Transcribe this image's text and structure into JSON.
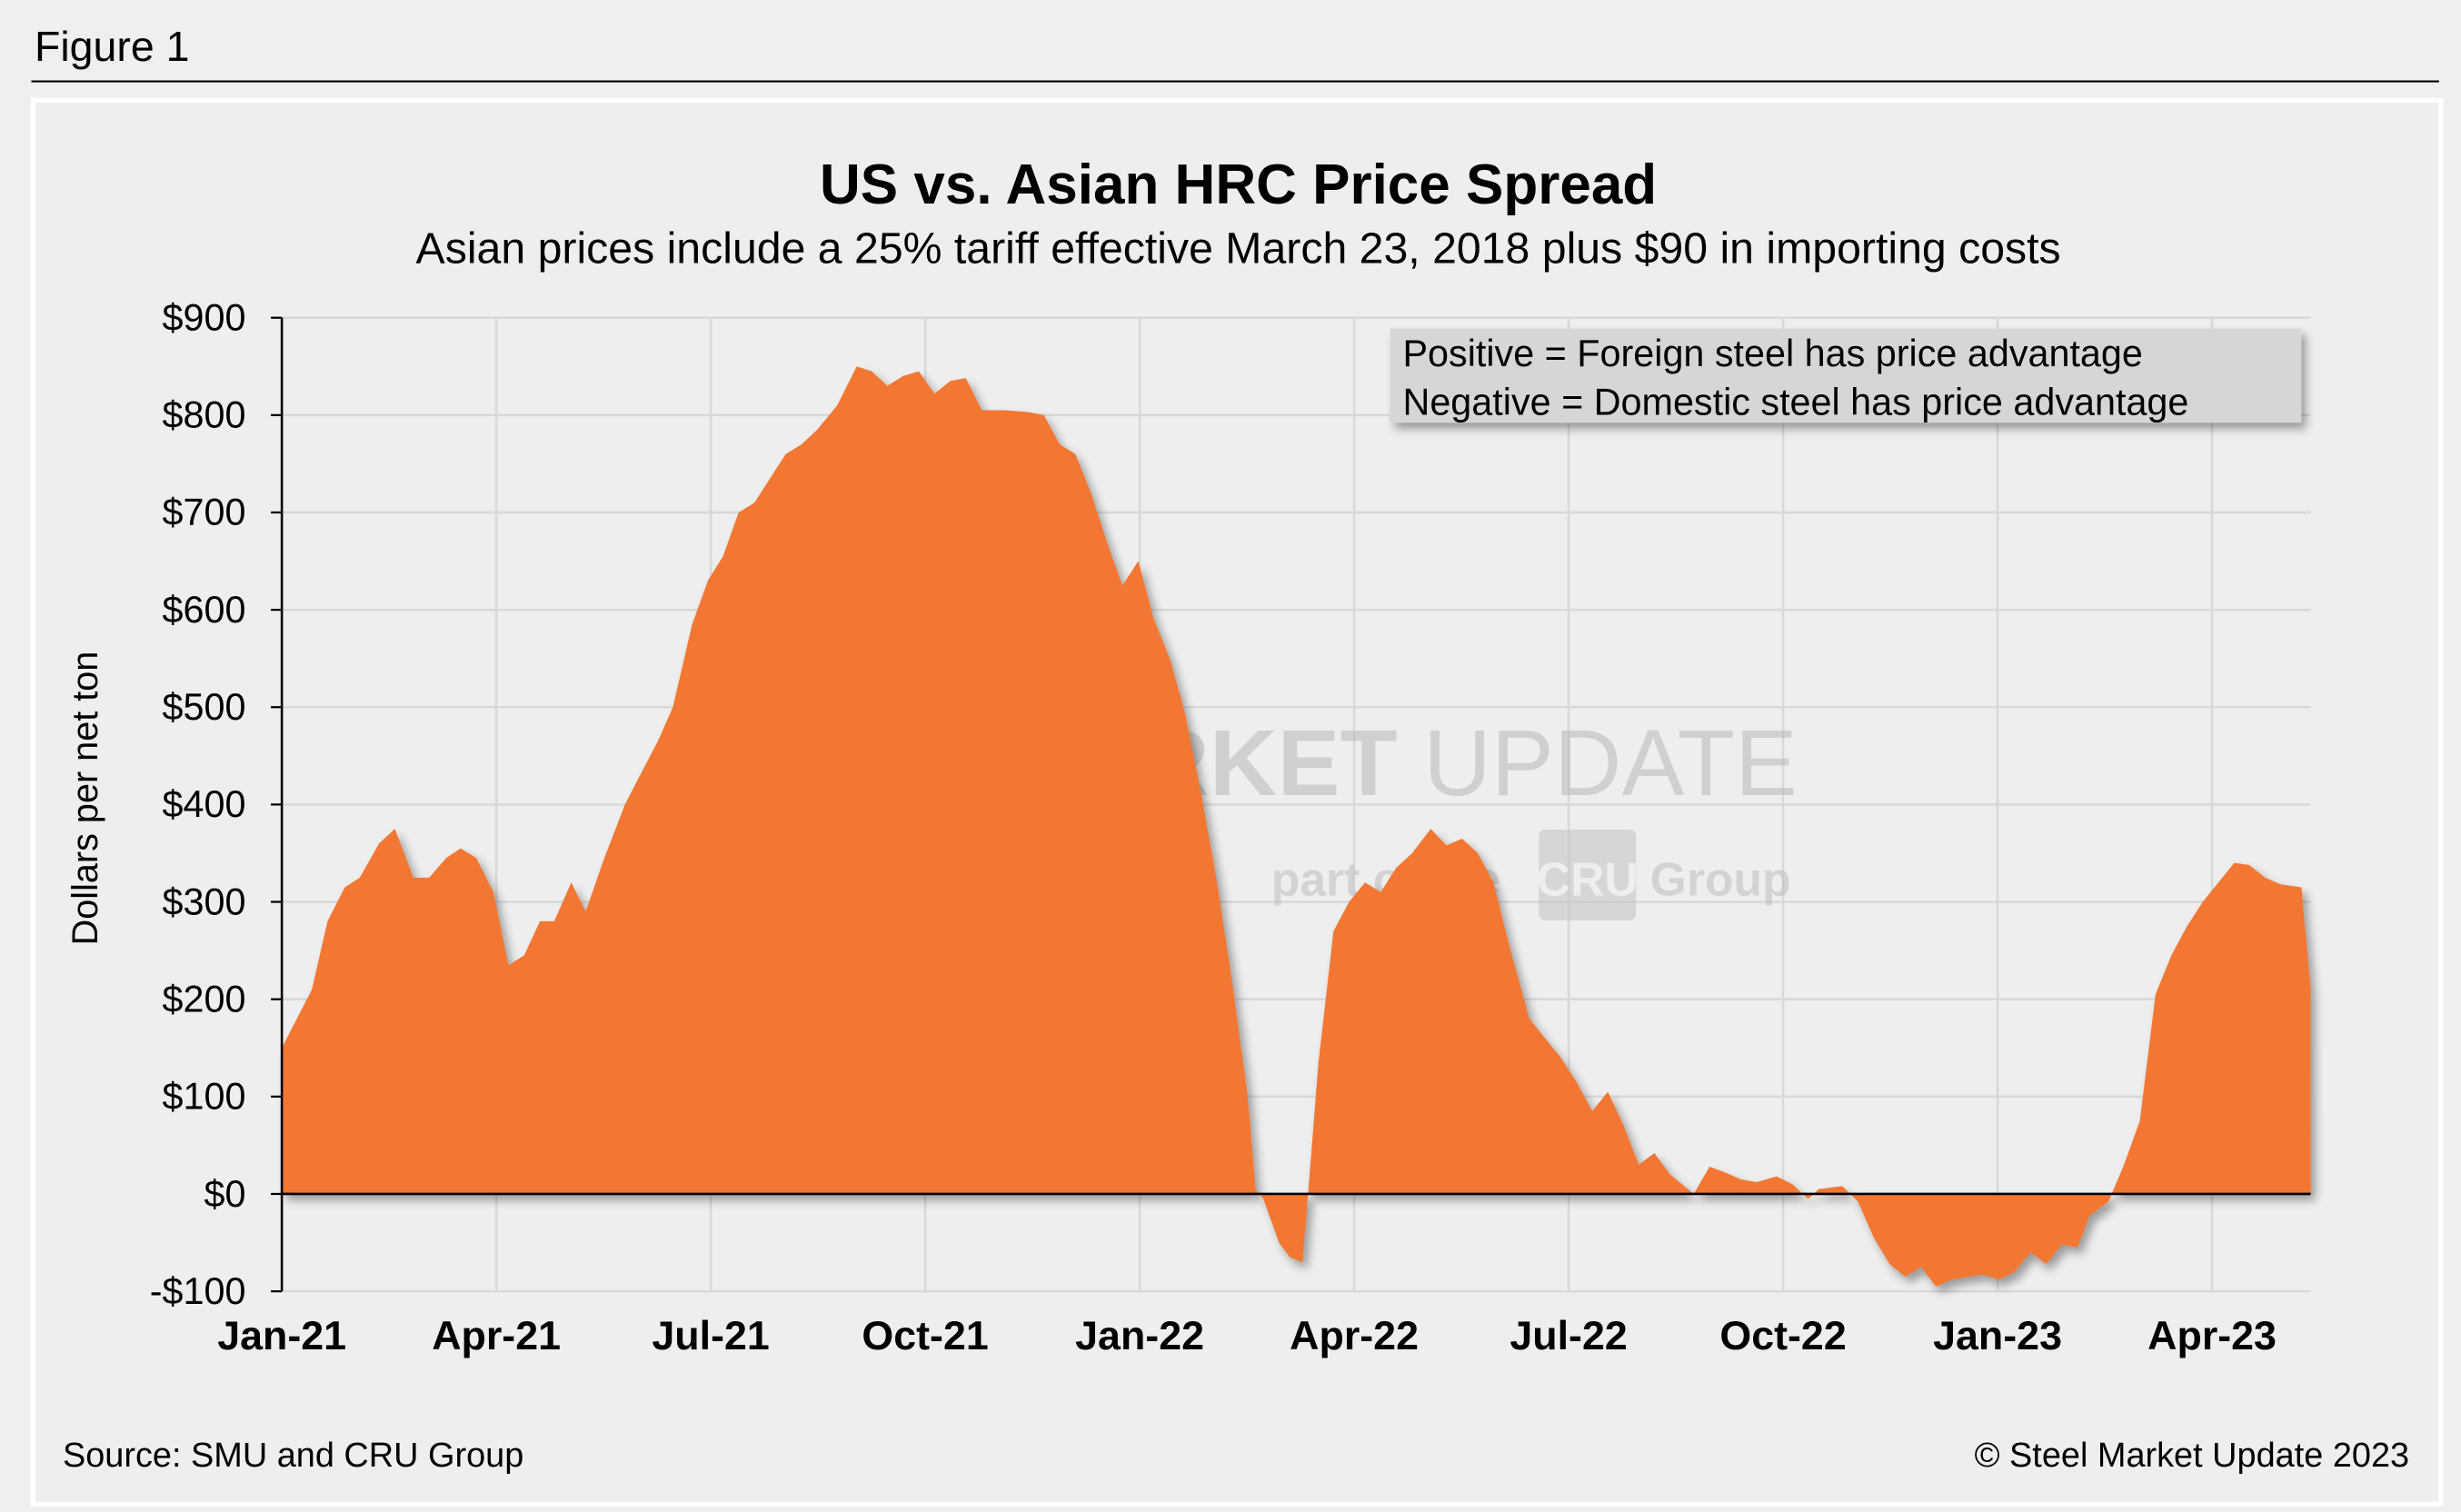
{
  "figure_label": "Figure 1",
  "source": "Source: SMU and CRU Group",
  "copyright": "© Steel Market Update 2023",
  "watermark": {
    "line1_bold": "STEEL MARKET",
    "line1_light": "UPDATE",
    "line2a": "part of the",
    "line2_logo": "CRU",
    "line2b": "Group"
  },
  "legend_note": [
    "Positive = Foreign steel has price advantage",
    "Negative = Domestic steel has price advantage"
  ],
  "colors": {
    "fill": "#f27730",
    "grid": "#d9d9d9",
    "background": "#efefef",
    "legend_bg": "#d6d6d6"
  },
  "chart_data": {
    "type": "area",
    "title": "US vs. Asian HRC Price Spread",
    "subtitle": "Asian prices include a 25% tariff effective March 23, 2018 plus $90 in importing costs",
    "xlabel": "",
    "ylabel": "Dollars per net ton",
    "ylim": [
      -100,
      900
    ],
    "yticks": [
      -100,
      0,
      100,
      200,
      300,
      400,
      500,
      600,
      700,
      800,
      900
    ],
    "ytick_labels": [
      "-$100",
      "$0",
      "$100",
      "$200",
      "$300",
      "$400",
      "$500",
      "$600",
      "$700",
      "$800",
      "$900"
    ],
    "x_units": "months since Jan 2021",
    "xlim": [
      0,
      28.38
    ],
    "xticks": [
      0,
      3,
      6,
      9,
      12,
      15,
      18,
      21,
      24,
      27
    ],
    "xtick_labels": [
      "Jan-21",
      "Apr-21",
      "Jul-21",
      "Oct-21",
      "Jan-22",
      "Apr-22",
      "Jul-22",
      "Oct-22",
      "Jan-23",
      "Apr-23"
    ],
    "grid": true,
    "series": [
      {
        "name": "US vs. Asian HRC spread",
        "points": [
          [
            0,
            150
          ],
          [
            0.42,
            210
          ],
          [
            0.64,
            280
          ],
          [
            0.88,
            315
          ],
          [
            1.09,
            325
          ],
          [
            1.36,
            360
          ],
          [
            1.58,
            375
          ],
          [
            1.84,
            325
          ],
          [
            2.06,
            325
          ],
          [
            2.3,
            345
          ],
          [
            2.5,
            355
          ],
          [
            2.72,
            345
          ],
          [
            2.96,
            310
          ],
          [
            3.17,
            235
          ],
          [
            3.39,
            245
          ],
          [
            3.61,
            280
          ],
          [
            3.81,
            280
          ],
          [
            4.05,
            320
          ],
          [
            4.25,
            290
          ],
          [
            4.51,
            345
          ],
          [
            4.8,
            400
          ],
          [
            5.01,
            430
          ],
          [
            5.26,
            465
          ],
          [
            5.47,
            500
          ],
          [
            5.74,
            585
          ],
          [
            5.96,
            630
          ],
          [
            6.17,
            655
          ],
          [
            6.39,
            700
          ],
          [
            6.61,
            710
          ],
          [
            6.83,
            735
          ],
          [
            7.05,
            760
          ],
          [
            7.27,
            770
          ],
          [
            7.49,
            785
          ],
          [
            7.77,
            810
          ],
          [
            8.04,
            850
          ],
          [
            8.25,
            845
          ],
          [
            8.47,
            830
          ],
          [
            8.69,
            840
          ],
          [
            8.91,
            845
          ],
          [
            9.13,
            822
          ],
          [
            9.35,
            835
          ],
          [
            9.57,
            838
          ],
          [
            9.79,
            805
          ],
          [
            10.12,
            805
          ],
          [
            10.44,
            803
          ],
          [
            10.66,
            800
          ],
          [
            10.88,
            770
          ],
          [
            11.1,
            760
          ],
          [
            11.32,
            720
          ],
          [
            11.54,
            670
          ],
          [
            11.76,
            625
          ],
          [
            11.98,
            650
          ],
          [
            12.2,
            590
          ],
          [
            12.42,
            550
          ],
          [
            12.63,
            495
          ],
          [
            12.85,
            415
          ],
          [
            13.07,
            325
          ],
          [
            13.29,
            220
          ],
          [
            13.51,
            100
          ],
          [
            13.62,
            5
          ],
          [
            13.73,
            -5
          ],
          [
            13.95,
            -50
          ],
          [
            14.1,
            -65
          ],
          [
            14.28,
            -70
          ],
          [
            14.5,
            135
          ],
          [
            14.71,
            270
          ],
          [
            14.93,
            300
          ],
          [
            15.15,
            320
          ],
          [
            15.37,
            310
          ],
          [
            15.59,
            335
          ],
          [
            15.81,
            350
          ],
          [
            16.07,
            375
          ],
          [
            16.29,
            358
          ],
          [
            16.51,
            365
          ],
          [
            16.73,
            350
          ],
          [
            16.95,
            320
          ],
          [
            17.17,
            255
          ],
          [
            17.45,
            180
          ],
          [
            17.67,
            160
          ],
          [
            17.89,
            140
          ],
          [
            18.11,
            115
          ],
          [
            18.33,
            85
          ],
          [
            18.55,
            105
          ],
          [
            18.77,
            70
          ],
          [
            18.98,
            30
          ],
          [
            19.2,
            42
          ],
          [
            19.42,
            20
          ],
          [
            19.75,
            0
          ],
          [
            19.97,
            28
          ],
          [
            20.19,
            22
          ],
          [
            20.41,
            15
          ],
          [
            20.63,
            12
          ],
          [
            20.91,
            18
          ],
          [
            21.13,
            10
          ],
          [
            21.35,
            -5
          ],
          [
            21.5,
            5
          ],
          [
            21.83,
            8
          ],
          [
            22.05,
            -8
          ],
          [
            22.27,
            -45
          ],
          [
            22.49,
            -72
          ],
          [
            22.71,
            -85
          ],
          [
            22.93,
            -75
          ],
          [
            23.14,
            -95
          ],
          [
            23.36,
            -88
          ],
          [
            23.58,
            -85
          ],
          [
            23.8,
            -83
          ],
          [
            24.02,
            -88
          ],
          [
            24.24,
            -80
          ],
          [
            24.46,
            -60
          ],
          [
            24.68,
            -72
          ],
          [
            24.9,
            -52
          ],
          [
            25.12,
            -55
          ],
          [
            25.29,
            -22
          ],
          [
            25.55,
            -8
          ],
          [
            25.77,
            30
          ],
          [
            25.99,
            75
          ],
          [
            26.21,
            205
          ],
          [
            26.43,
            245
          ],
          [
            26.65,
            275
          ],
          [
            26.87,
            300
          ],
          [
            27.09,
            320
          ],
          [
            27.31,
            340
          ],
          [
            27.52,
            338
          ],
          [
            27.74,
            325
          ],
          [
            27.96,
            318
          ],
          [
            28.25,
            315
          ],
          [
            28.38,
            210
          ]
        ]
      }
    ]
  }
}
